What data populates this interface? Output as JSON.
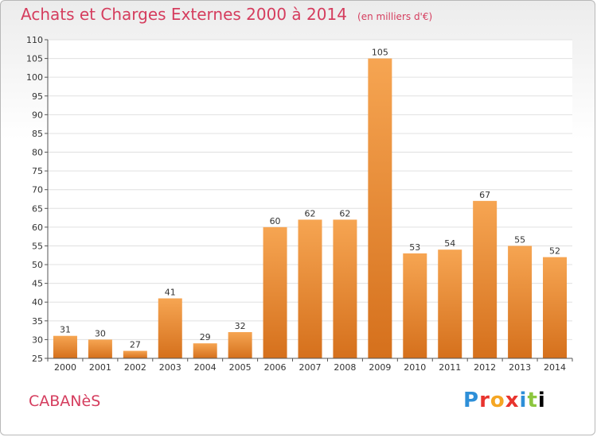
{
  "page": {
    "title": "Achats et Charges Externes 2000 à 2014",
    "subtitle": "(en milliers d'€)",
    "commune": "CABANèS",
    "logo": [
      "P",
      "r",
      "o",
      "x",
      "i",
      "t",
      "i"
    ]
  },
  "colors": {
    "title": "#d53d5e",
    "bar_light": "#f6a552",
    "bar_dark": "#d5701c",
    "grid": "#e0e0e0"
  },
  "chart_data": {
    "type": "bar",
    "title": "Achats et Charges Externes 2000 à 2014",
    "subtitle": "(en milliers d'€)",
    "categories": [
      "2000",
      "2001",
      "2002",
      "2003",
      "2004",
      "2005",
      "2006",
      "2007",
      "2008",
      "2009",
      "2010",
      "2011",
      "2012",
      "2013",
      "2014"
    ],
    "values": [
      31,
      30,
      27,
      41,
      29,
      32,
      60,
      62,
      62,
      105,
      53,
      54,
      67,
      55,
      52
    ],
    "ylim": [
      25,
      110
    ],
    "yticks": [
      25,
      30,
      35,
      40,
      45,
      50,
      55,
      60,
      65,
      70,
      75,
      80,
      85,
      90,
      95,
      100,
      105,
      110
    ],
    "grid": true,
    "xlabel": "",
    "ylabel": ""
  }
}
